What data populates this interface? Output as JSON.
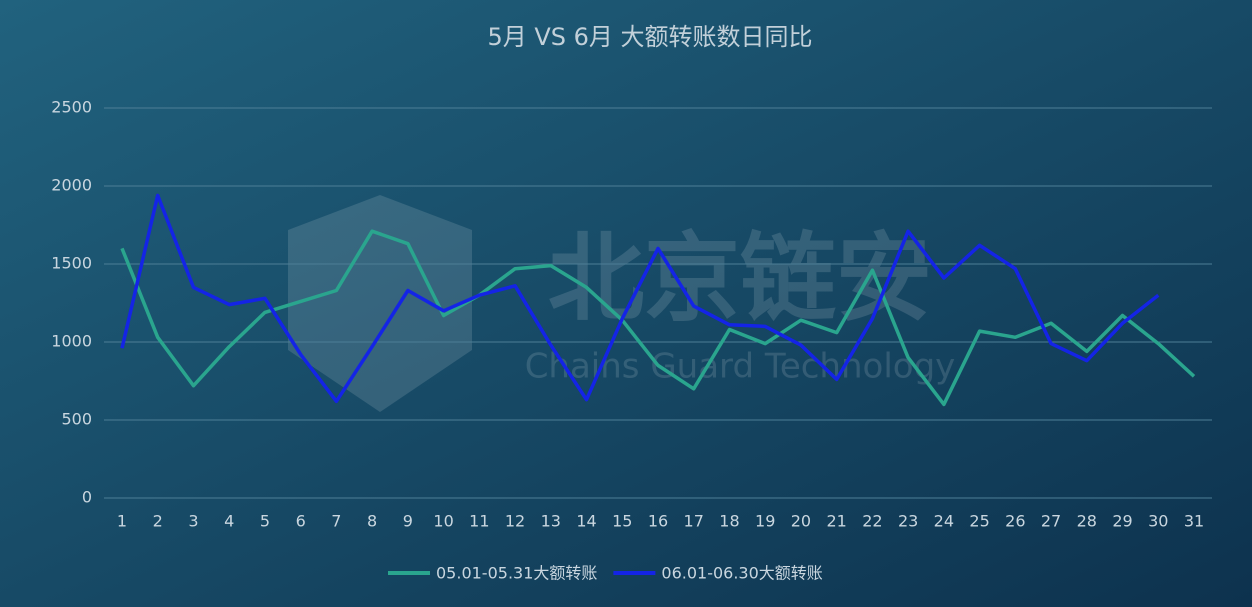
{
  "chart_data": {
    "type": "line",
    "title": "5月 VS 6月 大额转账数日同比",
    "watermark": {
      "title": "北京链安",
      "subtitle": "Chains Guard Technology"
    },
    "categories": [
      "1",
      "2",
      "3",
      "4",
      "5",
      "6",
      "7",
      "8",
      "9",
      "10",
      "11",
      "12",
      "13",
      "14",
      "15",
      "16",
      "17",
      "18",
      "19",
      "20",
      "21",
      "22",
      "23",
      "24",
      "25",
      "26",
      "27",
      "28",
      "29",
      "30",
      "31"
    ],
    "series": [
      {
        "name": "05.01-05.31大额转账",
        "color": "#2aa58e",
        "values": [
          1600,
          1030,
          720,
          970,
          1190,
          1260,
          1330,
          1710,
          1630,
          1170,
          1300,
          1470,
          1490,
          1350,
          1140,
          850,
          700,
          1080,
          990,
          1140,
          1060,
          1460,
          900,
          600,
          1070,
          1030,
          1120,
          940,
          1170,
          990,
          780
        ]
      },
      {
        "name": "06.01-06.30大额转账",
        "color": "#1424e6",
        "values": [
          960,
          1940,
          1350,
          1240,
          1280,
          920,
          620,
          970,
          1330,
          1200,
          1300,
          1360,
          980,
          630,
          1150,
          1600,
          1230,
          1110,
          1100,
          980,
          760,
          1150,
          1710,
          1410,
          1620,
          1470,
          990,
          880,
          1120,
          1300,
          null
        ]
      }
    ],
    "ylim": [
      0,
      2500
    ],
    "yticks": [
      0,
      500,
      1000,
      1500,
      2000,
      2500
    ],
    "grid": true,
    "legend": "bottom"
  }
}
